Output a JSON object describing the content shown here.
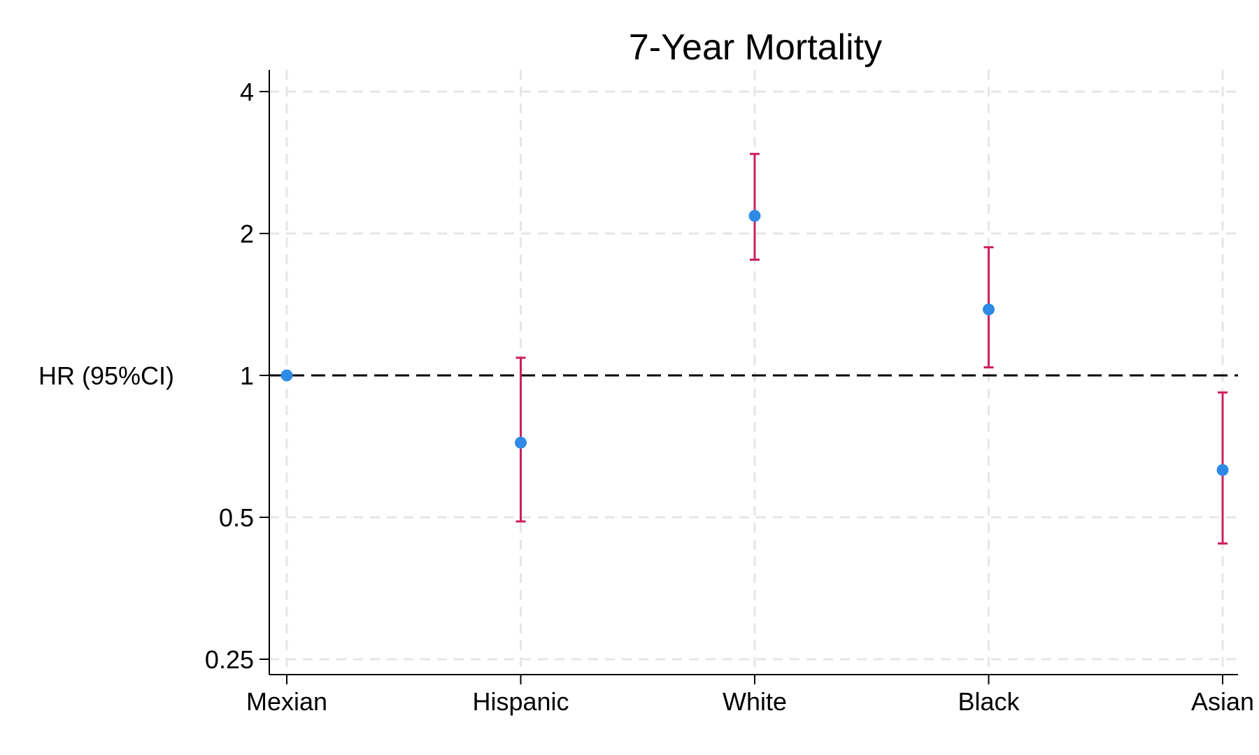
{
  "chart_data": {
    "type": "scatter",
    "title": "7-Year Mortality",
    "ylabel": "HR (95%CI)",
    "xlabel": "",
    "y_scale": "log2",
    "ylim": [
      0.235,
      4.3
    ],
    "yticks": [
      {
        "value": 0.25,
        "label": "0.25"
      },
      {
        "value": 0.5,
        "label": "0.5"
      },
      {
        "value": 1,
        "label": "1"
      },
      {
        "value": 2,
        "label": "2"
      },
      {
        "value": 4,
        "label": "4"
      }
    ],
    "categories": [
      "Mexian",
      "Hispanic",
      "White",
      "Black",
      "Asian"
    ],
    "series": [
      {
        "values": [
          1.0,
          0.72,
          2.18,
          1.38,
          0.63
        ],
        "ci_lower": [
          null,
          0.49,
          1.76,
          1.04,
          0.44
        ],
        "ci_upper": [
          null,
          1.09,
          2.95,
          1.87,
          0.92
        ]
      }
    ],
    "reference_line": {
      "value": 1,
      "style": "dashed",
      "color": "#000000"
    },
    "grid": true,
    "colors": {
      "point": "#2f8ae6",
      "error_bar": "#cc1f5f",
      "grid": "#e6e6e6",
      "axis": "#000000"
    }
  }
}
